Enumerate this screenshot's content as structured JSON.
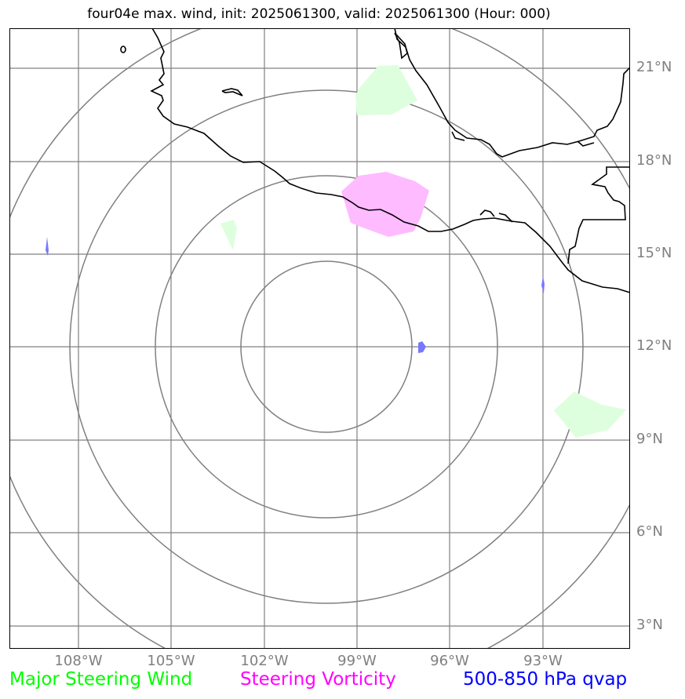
{
  "title": "four04e max. wind, init: 2025061300, valid: 2025061300 (Hour: 000)",
  "lat_labels": [
    "21°N",
    "18°N",
    "15°N",
    "12°N",
    "9°N",
    "6°N",
    "3°N"
  ],
  "lon_labels": [
    "108°W",
    "105°W",
    "102°W",
    "99°W",
    "96°W",
    "93°W"
  ],
  "legend": [
    {
      "label": "Major Steering Wind",
      "color": "#00ff00"
    },
    {
      "label": "Steering Vorticity",
      "color": "#ff00ff"
    },
    {
      "label": "500-850 hPa qvap",
      "color": "#0000ff"
    }
  ],
  "colors": {
    "grid": "#808080",
    "range_rings": "#808080",
    "coastline": "#000000",
    "steering_wind_fill": "#ddffdd",
    "vorticity_fill": "#ffbbff",
    "qvap_fill": "#7777ff"
  }
}
